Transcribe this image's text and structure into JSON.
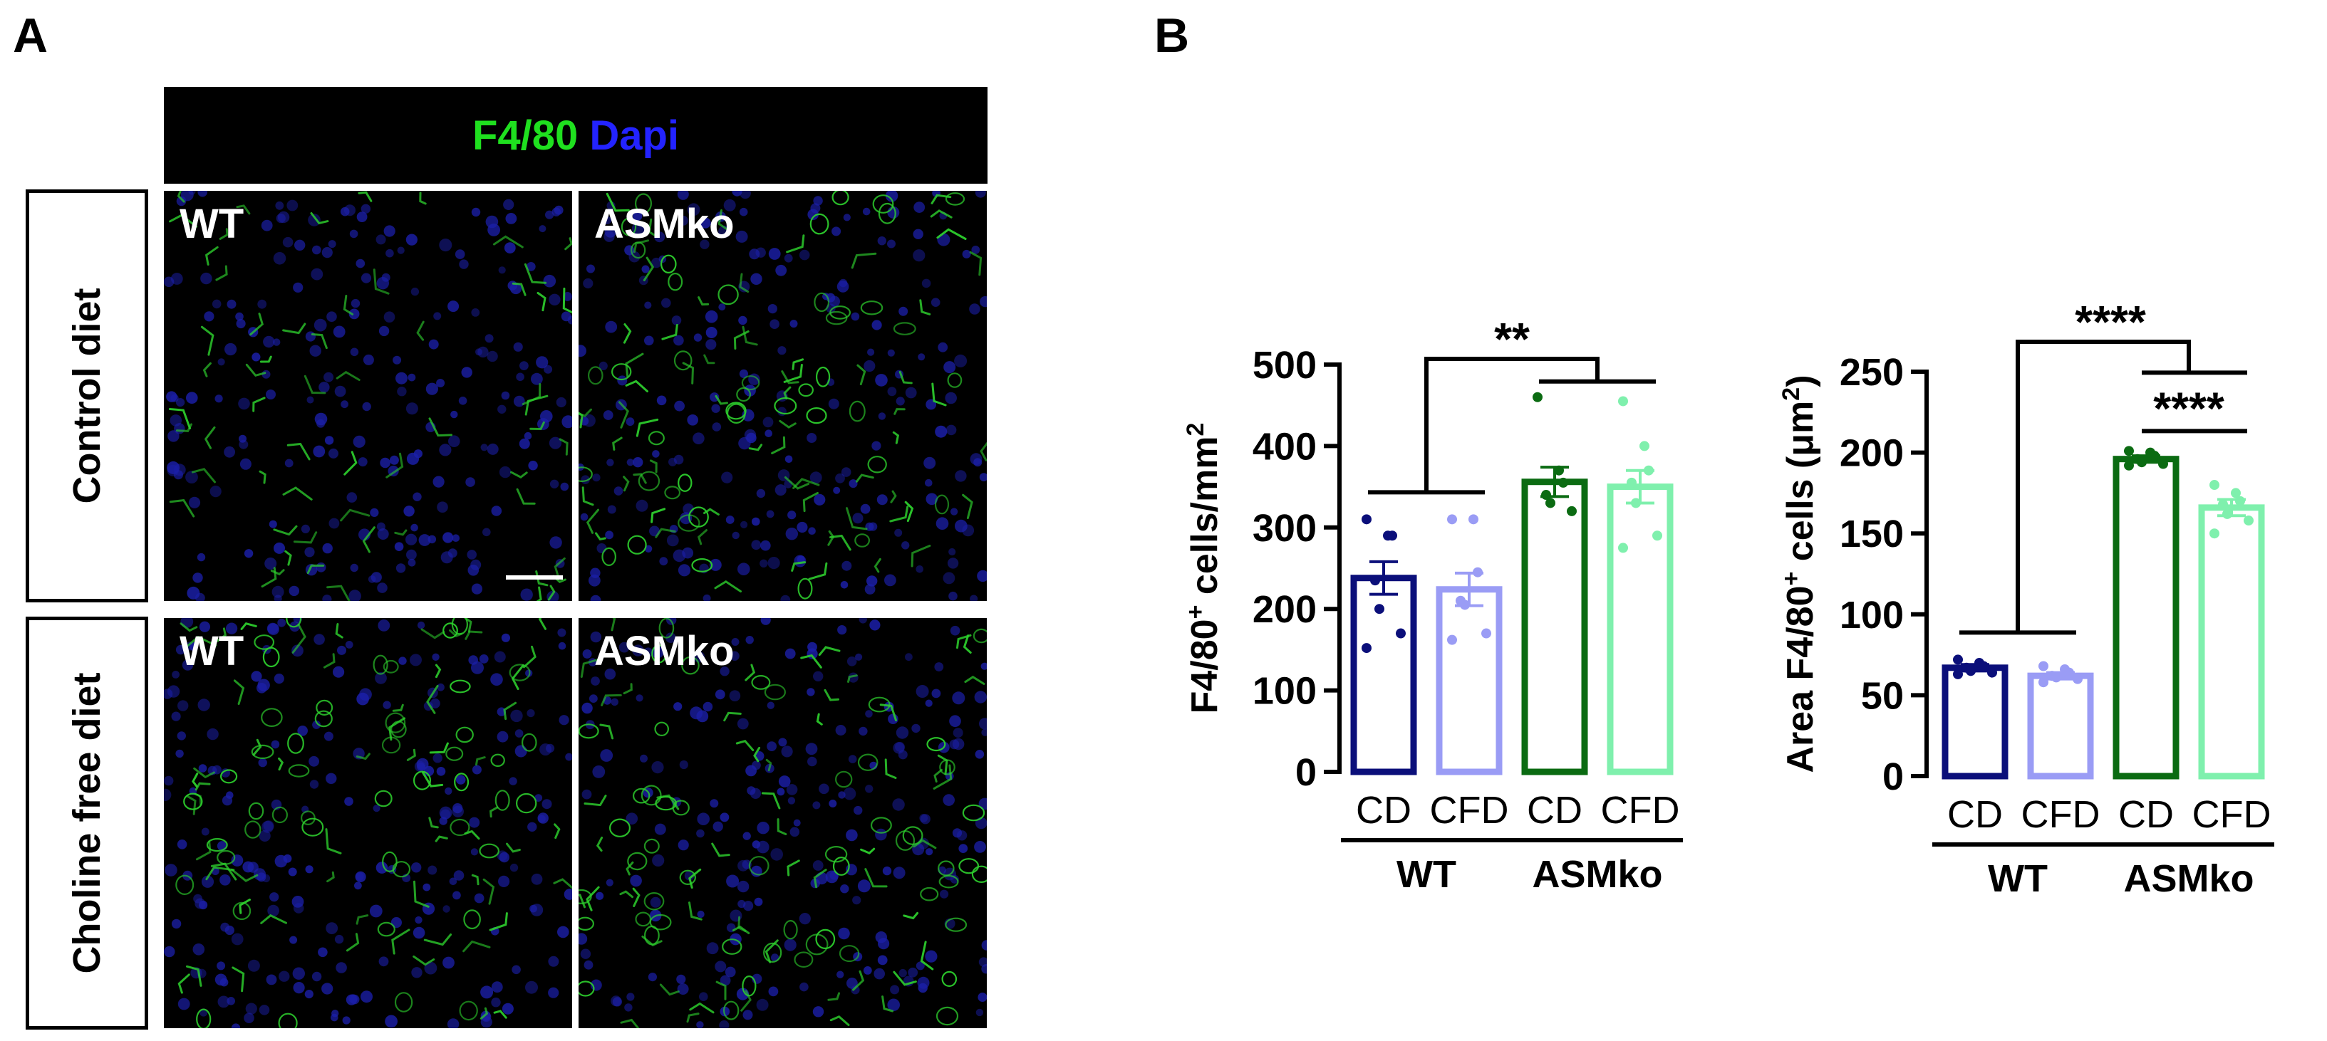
{
  "panel_a": {
    "letter": "A",
    "header": {
      "marker_green": "F4/80",
      "marker_blue": "Dapi"
    },
    "row_labels": [
      "Control diet",
      "Choline free diet"
    ],
    "image_labels": {
      "wt": "WT",
      "asmko": "ASMko"
    }
  },
  "panel_b": {
    "letter": "B"
  },
  "colors": {
    "wt_cd": "#0b0f7a",
    "wt_cfd": "#9a9cf5",
    "ko_cd": "#0b6b12",
    "ko_cfd": "#7ff0ad",
    "membrane_green": "#2dcf2d",
    "nucleus_blue": "#1b1fa8"
  },
  "chart_data": [
    {
      "type": "bar",
      "ylabel": "F4/80+ cells/mm2",
      "ylabel_parts": {
        "pre": "F4/80",
        "sup1": "+",
        "mid": " cells/mm",
        "sup2": "2"
      },
      "ylim": [
        0,
        500
      ],
      "yticks": [
        "0",
        "100",
        "200",
        "300",
        "400",
        "500"
      ],
      "categories": [
        "CD",
        "CFD",
        "CD",
        "CFD"
      ],
      "groups": [
        "WT",
        "ASMko"
      ],
      "values": [
        238,
        224,
        356,
        350
      ],
      "sem": [
        20,
        20,
        18,
        20
      ],
      "points": [
        [
          310,
          290,
          290,
          235,
          200,
          170,
          152
        ],
        [
          310,
          310,
          245,
          210,
          205,
          170,
          162
        ],
        [
          460,
          370,
          355,
          340,
          330,
          320
        ],
        [
          455,
          400,
          370,
          355,
          330,
          290,
          275
        ]
      ],
      "significance": [
        {
          "label": "**",
          "comparison": "WT vs ASMko"
        }
      ]
    },
    {
      "type": "bar",
      "ylabel": "Area F4/80+ cells (μm2)",
      "ylabel_parts": {
        "pre": "Area F4/80",
        "sup1": "+",
        "mid": " cells (μm",
        "sup2": "2",
        "post": ")"
      },
      "ylim": [
        0,
        250
      ],
      "yticks": [
        "0",
        "50",
        "100",
        "150",
        "200",
        "250"
      ],
      "categories": [
        "CD",
        "CFD",
        "CD",
        "CFD"
      ],
      "groups": [
        "WT",
        "ASMko"
      ],
      "values": [
        67,
        62,
        196,
        166
      ],
      "sem": [
        2,
        2,
        2,
        5
      ],
      "points": [
        [
          72,
          70,
          68,
          67,
          65,
          64,
          63
        ],
        [
          68,
          66,
          64,
          62,
          61,
          60,
          58
        ],
        [
          201,
          200,
          198,
          196,
          194,
          193,
          192
        ],
        [
          180,
          175,
          170,
          168,
          162,
          158,
          150
        ]
      ],
      "significance": [
        {
          "label": "****",
          "comparison": "WT vs ASMko"
        },
        {
          "label": "****",
          "comparison": "ASMko CD vs ASMko CFD"
        }
      ]
    }
  ]
}
